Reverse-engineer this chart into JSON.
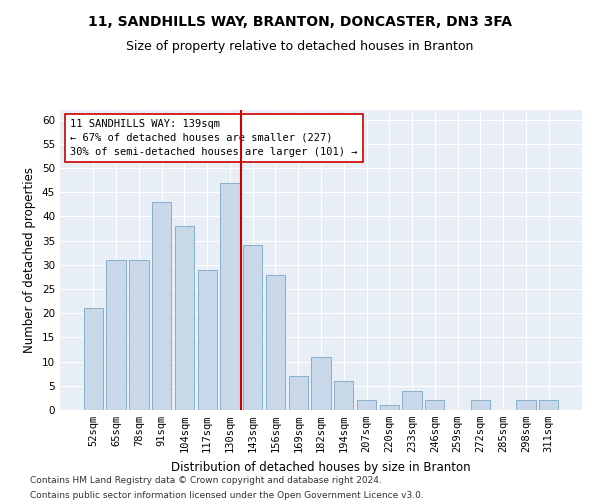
{
  "title1": "11, SANDHILLS WAY, BRANTON, DONCASTER, DN3 3FA",
  "title2": "Size of property relative to detached houses in Branton",
  "xlabel": "Distribution of detached houses by size in Branton",
  "ylabel": "Number of detached properties",
  "categories": [
    "52sqm",
    "65sqm",
    "78sqm",
    "91sqm",
    "104sqm",
    "117sqm",
    "130sqm",
    "143sqm",
    "156sqm",
    "169sqm",
    "182sqm",
    "194sqm",
    "207sqm",
    "220sqm",
    "233sqm",
    "246sqm",
    "259sqm",
    "272sqm",
    "285sqm",
    "298sqm",
    "311sqm"
  ],
  "values": [
    21,
    31,
    31,
    43,
    38,
    29,
    47,
    34,
    28,
    7,
    11,
    6,
    2,
    1,
    4,
    2,
    0,
    2,
    0,
    2,
    2
  ],
  "bar_color": "#c8d8e8",
  "bar_edge_color": "#7aa8c8",
  "vline_color": "#cc0000",
  "vline_x_index": 7,
  "annotation_line1": "11 SANDHILLS WAY: 139sqm",
  "annotation_line2": "← 67% of detached houses are smaller (227)",
  "annotation_line3": "30% of semi-detached houses are larger (101) →",
  "annotation_box_facecolor": "#ffffff",
  "annotation_box_edgecolor": "#cc0000",
  "ylim": [
    0,
    62
  ],
  "yticks": [
    0,
    5,
    10,
    15,
    20,
    25,
    30,
    35,
    40,
    45,
    50,
    55,
    60
  ],
  "bg_color": "#e8eef5",
  "grid_color": "#ffffff",
  "footer1": "Contains HM Land Registry data © Crown copyright and database right 2024.",
  "footer2": "Contains public sector information licensed under the Open Government Licence v3.0.",
  "title1_fontsize": 10,
  "title2_fontsize": 9,
  "xlabel_fontsize": 8.5,
  "ylabel_fontsize": 8.5,
  "tick_fontsize": 7.5,
  "annotation_fontsize": 7.5,
  "footer_fontsize": 6.5
}
